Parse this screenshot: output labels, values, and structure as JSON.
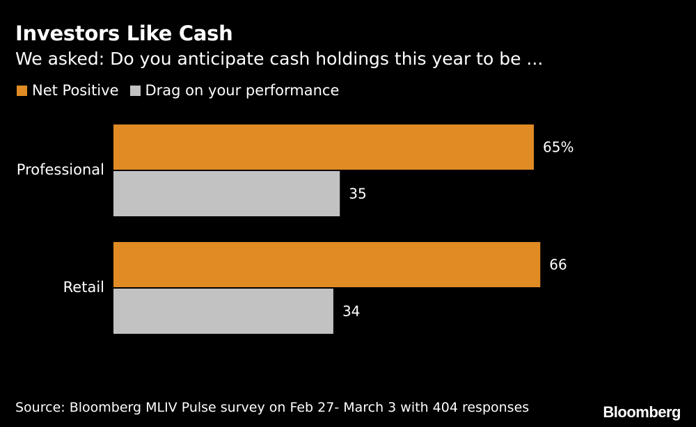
{
  "chart_data": {
    "type": "bar",
    "orientation": "horizontal",
    "title": "Investors Like Cash",
    "subtitle": "We asked: Do you anticipate cash holdings this year to be ...",
    "categories": [
      "Professional",
      "Retail"
    ],
    "series": [
      {
        "name": "Net Positive",
        "values": [
          65,
          66
        ],
        "labels": [
          "65%",
          "66"
        ],
        "color": "#e08b24"
      },
      {
        "name": "Drag on your performance",
        "values": [
          35,
          34
        ],
        "labels": [
          "35",
          "34"
        ],
        "color": "#c2c2c2"
      }
    ],
    "xlim": [
      0,
      100
    ],
    "grid": false,
    "legend": "top-left",
    "source": "Source: Bloomberg MLIV Pulse survey on Feb 27- March 3 with 404 responses"
  },
  "branding": {
    "logo": "Bloomberg"
  },
  "colors": {
    "background": "#000000",
    "text": "#ffffff"
  }
}
